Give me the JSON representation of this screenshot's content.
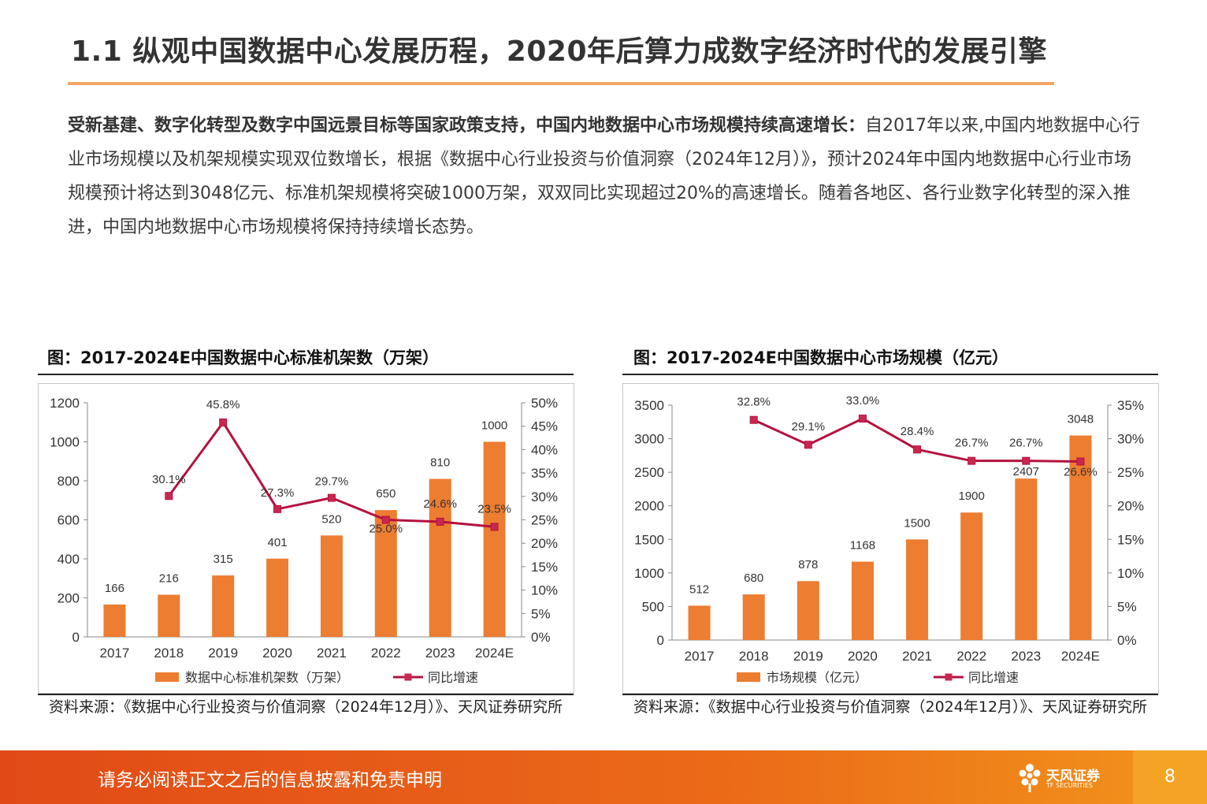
{
  "page": {
    "title": "1.1 纵观中国数据中心发展历程，2020年后算力成数字经济时代的发展引擎",
    "intro_bold": "受新基建、数字化转型及数字中国远景目标等国家政策支持，中国内地数据中心市场规模持续高速增长：",
    "intro_text": "自2017年以来,中国内地数据中心行业市场规模以及机架规模实现双位数增长，根据《数据中心行业投资与价值洞察（2024年12月）》，预计2024年中国内地数据中心行业市场规模预计将达到3048亿元、标准机架规模将突破1000万架，双双同比实现超过20%的高速增长。随着各地区、各行业数字化转型的深入推进，中国内地数据中心市场规模将保持持续增长态势。",
    "footer_text": "请务必阅读正文之后的信息披露和免责申明",
    "logo_name": "天风证券",
    "logo_sub": "TF SECURITIES",
    "page_number": "8"
  },
  "colors": {
    "bar": "#ed7d31",
    "line": "#b5123f",
    "marker": "#c8284f",
    "accent": "#f2a764"
  },
  "chart_data": [
    {
      "type": "bar",
      "caption": "图：2017-2024E中国数据中心标准机架数（万架）",
      "source": "资料来源：《数据中心行业投资与价值洞察（2024年12月）》、天风证券研究所",
      "categories": [
        "2017",
        "2018",
        "2019",
        "2020",
        "2021",
        "2022",
        "2023",
        "2024E"
      ],
      "series": [
        {
          "name": "数据中心标准机架数（万架）",
          "type": "bar",
          "axis": "left",
          "values": [
            166,
            216,
            315,
            401,
            520,
            650,
            810,
            1000
          ],
          "labels": [
            "166",
            "216",
            "315",
            "401",
            "520",
            "650",
            "810",
            "1000"
          ]
        },
        {
          "name": "同比增速",
          "type": "line",
          "axis": "right",
          "values": [
            null,
            30.1,
            45.8,
            27.3,
            29.7,
            25.0,
            24.6,
            23.5
          ],
          "labels": [
            "",
            "30.1%",
            "45.8%",
            "27.3%",
            "29.7%",
            "25.0%",
            "24.6%",
            "23.5%"
          ]
        }
      ],
      "ylim": [
        0,
        1200
      ],
      "y_ticks": [
        "0",
        "200",
        "400",
        "600",
        "800",
        "1000",
        "1200"
      ],
      "y2lim": [
        0,
        50
      ],
      "y2_ticks": [
        "0%",
        "5%",
        "10%",
        "15%",
        "20%",
        "25%",
        "30%",
        "35%",
        "40%",
        "45%",
        "50%"
      ],
      "legend": {
        "bar": "数据中心标准机架数（万架）",
        "line": "同比增速"
      }
    },
    {
      "type": "bar",
      "caption": "图：2017-2024E中国数据中心市场规模（亿元）",
      "source": "资料来源：《数据中心行业投资与价值洞察（2024年12月）》、天风证券研究所",
      "categories": [
        "2017",
        "2018",
        "2019",
        "2020",
        "2021",
        "2022",
        "2023",
        "2024E"
      ],
      "series": [
        {
          "name": "市场规模（亿元）",
          "type": "bar",
          "axis": "left",
          "values": [
            512,
            680,
            878,
            1168,
            1500,
            1900,
            2407,
            3048
          ],
          "labels": [
            "512",
            "680",
            "878",
            "1168",
            "1500",
            "1900",
            "2407",
            "3048"
          ]
        },
        {
          "name": "同比增速",
          "type": "line",
          "axis": "right",
          "values": [
            null,
            32.8,
            29.1,
            33.0,
            28.4,
            26.7,
            26.7,
            26.6
          ],
          "labels": [
            "",
            "32.8%",
            "29.1%",
            "33.0%",
            "28.4%",
            "26.7%",
            "26.7%",
            "26.6%"
          ]
        }
      ],
      "ylim": [
        0,
        3500
      ],
      "y_ticks": [
        "0",
        "500",
        "1000",
        "1500",
        "2000",
        "2500",
        "3000",
        "3500"
      ],
      "y2lim": [
        0,
        35
      ],
      "y2_ticks": [
        "0%",
        "5%",
        "10%",
        "15%",
        "20%",
        "25%",
        "30%",
        "35%"
      ],
      "legend": {
        "bar": "市场规模（亿元）",
        "line": "同比增速"
      }
    }
  ]
}
